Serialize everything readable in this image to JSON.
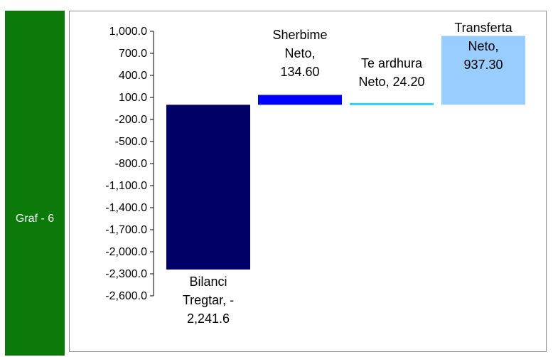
{
  "side_label": "Graf - 6",
  "chart_data": {
    "type": "bar",
    "title": "",
    "xlabel": "",
    "ylabel": "",
    "ylim": [
      -2600,
      1000
    ],
    "yticks": [
      1000,
      700,
      400,
      100,
      -200,
      -500,
      -800,
      -1100,
      -1400,
      -1700,
      -2000,
      -2300,
      -2600
    ],
    "ytick_labels": [
      "1,000.0",
      "700.0",
      "400.0",
      "100.0",
      "-200.0",
      "-500.0",
      "-800.0",
      "-1,100.0",
      "-1,400.0",
      "-1,700.0",
      "-2,000.0",
      "-2,300.0",
      "-2,600.0"
    ],
    "grid": false,
    "legend": false,
    "categories": [
      "Bilanci Tregtar",
      "Sherbime Neto",
      "Te ardhura Neto",
      "Transferta Neto"
    ],
    "values": [
      -2241.6,
      134.6,
      24.2,
      937.3
    ],
    "colors": [
      "#000066",
      "#0000ff",
      "#33ccff",
      "#99ccff"
    ],
    "data_labels": [
      [
        "Bilanci",
        "Tregtar, -",
        "2,241.6"
      ],
      [
        "Sherbime",
        "Neto,",
        "134.60"
      ],
      [
        "Te ardhura",
        "Neto, 24.20"
      ],
      [
        "Transferta",
        "Neto,",
        "937.30"
      ]
    ]
  }
}
